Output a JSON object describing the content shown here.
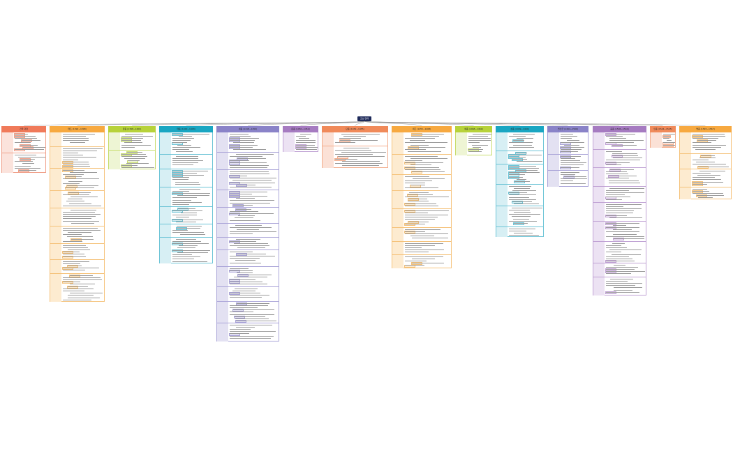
{
  "root": {
    "label": "조선 연대"
  },
  "connector_color": "#999999",
  "columns": [
    {
      "id": "c0",
      "label": "건국 과정",
      "head": "#f07a5a",
      "body": "#fbe3dc",
      "border": "#f0a08a"
    },
    {
      "id": "c1",
      "label": "태조 (1392~1398)",
      "head": "#f7a940",
      "body": "#fdebd0",
      "border": "#f5c27a"
    },
    {
      "id": "c2",
      "label": "정종 (1398~1400)",
      "head": "#b7d23a",
      "body": "#eef5d4",
      "border": "#c8dd6e"
    },
    {
      "id": "c3",
      "label": "태종 (1400~1418)",
      "head": "#1aa6c2",
      "body": "#d7eff4",
      "border": "#6cc4d6"
    },
    {
      "id": "c4",
      "label": "세종 (1418~1450)",
      "head": "#8a83c8",
      "body": "#e3e1f2",
      "border": "#aaa4d8"
    },
    {
      "id": "c5",
      "label": "문종 (1450~1452)",
      "head": "#a67bc1",
      "body": "#ece2f3",
      "border": "#c0a2d4"
    },
    {
      "id": "c6",
      "label": "단종 (1452~1455)",
      "head": "#f08a5a",
      "body": "#fbe1d6",
      "border": "#f3ad8c"
    },
    {
      "id": "c7",
      "label": "세조 (1455~1468)",
      "head": "#f7a940",
      "body": "#fdebd0",
      "border": "#f5c27a"
    },
    {
      "id": "c8",
      "label": "예종 (1468~1469)",
      "head": "#b7d23a",
      "body": "#eef5d4",
      "border": "#c8dd6e"
    },
    {
      "id": "c9",
      "label": "성종 (1469~1494)",
      "head": "#1aa6c2",
      "body": "#d7eff4",
      "border": "#6cc4d6"
    },
    {
      "id": "c10",
      "label": "연산군 (1494~1506)",
      "head": "#8a83c8",
      "body": "#e3e1f2",
      "border": "#aaa4d8"
    },
    {
      "id": "c11",
      "label": "중종 (1506~1544)",
      "head": "#a67bc1",
      "body": "#ece2f3",
      "border": "#c0a2d4"
    },
    {
      "id": "c12",
      "label": "인종 (1544~1545)",
      "head": "#f08a5a",
      "body": "#fbe1d6",
      "border": "#f3ad8c"
    },
    {
      "id": "c13",
      "label": "명종 (1545~1567)",
      "head": "#f7a940",
      "body": "#fdebd0",
      "border": "#f5c27a"
    }
  ]
}
